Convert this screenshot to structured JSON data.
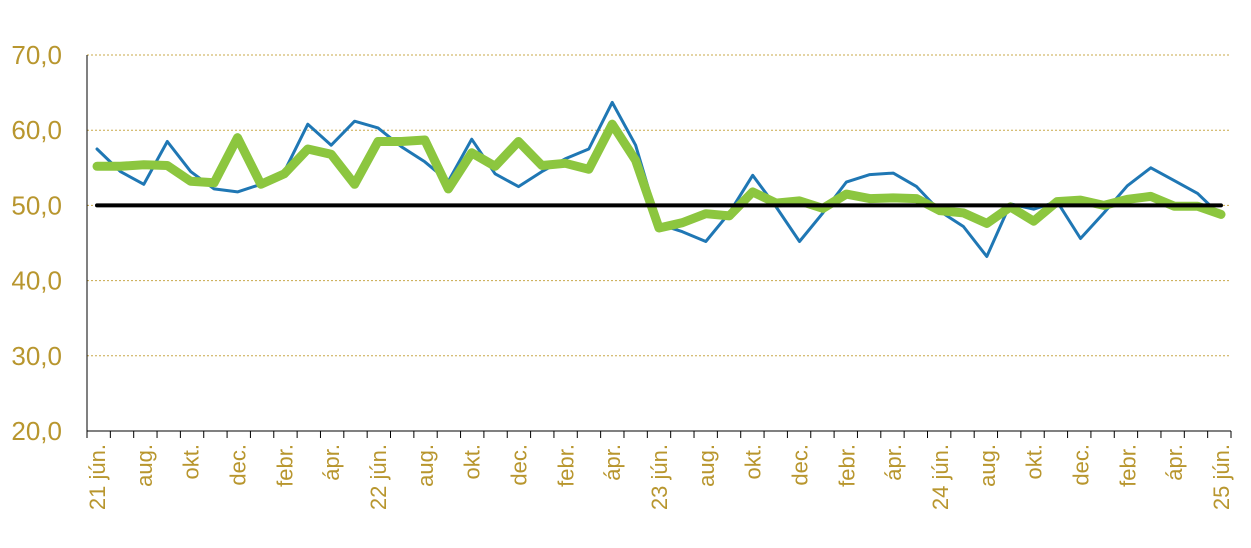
{
  "chart_data": {
    "type": "line",
    "ylim": [
      20,
      70
    ],
    "y_ticks": [
      "20,0",
      "30,0",
      "40,0",
      "50,0",
      "60,0",
      "70,0"
    ],
    "y_tick_values": [
      20,
      30,
      40,
      50,
      60,
      70
    ],
    "grid": "horizontal dotted",
    "x_tick_labels": [
      {
        "i": 0,
        "label": "21 jún."
      },
      {
        "i": 2,
        "label": "aug."
      },
      {
        "i": 4,
        "label": "okt."
      },
      {
        "i": 6,
        "label": "dec."
      },
      {
        "i": 8,
        "label": "febr."
      },
      {
        "i": 10,
        "label": "ápr."
      },
      {
        "i": 12,
        "label": "22 jún."
      },
      {
        "i": 14,
        "label": "aug."
      },
      {
        "i": 16,
        "label": "okt."
      },
      {
        "i": 18,
        "label": "dec."
      },
      {
        "i": 20,
        "label": "febr."
      },
      {
        "i": 22,
        "label": "ápr."
      },
      {
        "i": 24,
        "label": "23 jún."
      },
      {
        "i": 26,
        "label": "aug."
      },
      {
        "i": 28,
        "label": "okt."
      },
      {
        "i": 30,
        "label": "dec."
      },
      {
        "i": 32,
        "label": "febr."
      },
      {
        "i": 34,
        "label": "ápr."
      },
      {
        "i": 36,
        "label": "24 jún."
      },
      {
        "i": 38,
        "label": "aug."
      },
      {
        "i": 40,
        "label": "okt."
      },
      {
        "i": 42,
        "label": "dec."
      },
      {
        "i": 44,
        "label": "febr."
      },
      {
        "i": 46,
        "label": "ápr."
      },
      {
        "i": 48,
        "label": "25 jún."
      }
    ],
    "series": [
      {
        "color": "#1f77b4",
        "values": [
          57.5,
          54.5,
          52.8,
          58.5,
          54.5,
          52.2,
          51.8,
          52.8,
          54.5,
          60.8,
          58.0,
          61.2,
          60.3,
          57.8,
          55.8,
          53.2,
          58.8,
          54.2,
          52.5,
          54.5,
          56.2,
          57.5,
          63.7,
          58.0,
          47.5,
          46.5,
          45.2,
          49.0,
          54.0,
          49.8,
          45.2,
          49.0,
          53.1,
          54.1,
          54.3,
          52.5,
          49.2,
          47.2,
          43.2,
          50.2,
          49.5,
          50.5,
          45.6,
          49.0,
          52.6,
          55.0,
          53.3,
          51.6,
          48.6
        ]
      },
      {
        "color": "#8cc63f",
        "values": [
          55.2,
          55.2,
          55.4,
          55.3,
          53.2,
          53.0,
          59.0,
          52.8,
          54.2,
          57.5,
          56.8,
          52.8,
          58.5,
          58.5,
          58.7,
          52.2,
          57.0,
          55.2,
          58.5,
          55.3,
          55.6,
          54.8,
          60.8,
          56.0,
          47.0,
          47.7,
          48.9,
          48.6,
          51.8,
          50.3,
          50.6,
          49.6,
          51.5,
          50.9,
          51.0,
          50.9,
          49.3,
          49.0,
          47.6,
          49.8,
          47.9,
          50.5,
          50.7,
          50.0,
          50.8,
          51.2,
          49.9,
          49.9,
          48.8
        ]
      },
      {
        "color": "#000000",
        "values": [
          50.0,
          50.0
        ]
      }
    ]
  }
}
